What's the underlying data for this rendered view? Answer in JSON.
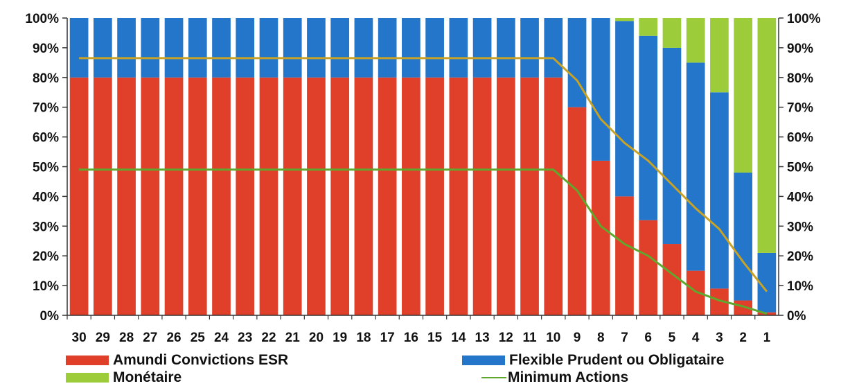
{
  "chart_data": {
    "type": "bar",
    "stacked": true,
    "categories": [
      "30",
      "29",
      "28",
      "27",
      "26",
      "25",
      "24",
      "23",
      "22",
      "21",
      "20",
      "19",
      "18",
      "17",
      "16",
      "15",
      "14",
      "13",
      "12",
      "11",
      "10",
      "9",
      "8",
      "7",
      "6",
      "5",
      "4",
      "3",
      "2",
      "1"
    ],
    "series": [
      {
        "name": "Amundi Convictions ESR",
        "color": "#e0402a",
        "values": [
          80,
          80,
          80,
          80,
          80,
          80,
          80,
          80,
          80,
          80,
          80,
          80,
          80,
          80,
          80,
          80,
          80,
          80,
          80,
          80,
          80,
          70,
          52,
          40,
          32,
          24,
          15,
          9,
          5,
          1
        ]
      },
      {
        "name": "Flexible Prudent ou Obligataire",
        "color": "#2376c9",
        "values": [
          20,
          20,
          20,
          20,
          20,
          20,
          20,
          20,
          20,
          20,
          20,
          20,
          20,
          20,
          20,
          20,
          20,
          20,
          20,
          20,
          20,
          30,
          48,
          59,
          62,
          66,
          70,
          66,
          43,
          20
        ]
      },
      {
        "name": "Monétaire",
        "color": "#9ccc3a",
        "values": [
          0,
          0,
          0,
          0,
          0,
          0,
          0,
          0,
          0,
          0,
          0,
          0,
          0,
          0,
          0,
          0,
          0,
          0,
          0,
          0,
          0,
          0,
          0,
          1,
          6,
          10,
          15,
          25,
          52,
          79
        ]
      }
    ],
    "lines": [
      {
        "name": "",
        "color": "#c8a227",
        "values": [
          86.5,
          86.5,
          86.5,
          86.5,
          86.5,
          86.5,
          86.5,
          86.5,
          86.5,
          86.5,
          86.5,
          86.5,
          86.5,
          86.5,
          86.5,
          86.5,
          86.5,
          86.5,
          86.5,
          86.5,
          86.5,
          79,
          66,
          58,
          52,
          44,
          36,
          29,
          18,
          8
        ]
      },
      {
        "name": "Minimum Actions",
        "color": "#5fa82d",
        "values": [
          49,
          49,
          49,
          49,
          49,
          49,
          49,
          49,
          49,
          49,
          49,
          49,
          49,
          49,
          49,
          49,
          49,
          49,
          49,
          49,
          49,
          42,
          30,
          24,
          20,
          14,
          8,
          5,
          3,
          0.5
        ]
      }
    ],
    "yticks": [
      "0%",
      "10%",
      "20%",
      "30%",
      "40%",
      "50%",
      "60%",
      "70%",
      "80%",
      "90%",
      "100%"
    ],
    "ylim": [
      0,
      100
    ],
    "right_axis": true,
    "legend_position": "bottom"
  },
  "legend": [
    {
      "label": "Amundi Convictions ESR",
      "kind": "swatch",
      "color": "#e0402a"
    },
    {
      "label": "Flexible Prudent ou Obligataire",
      "kind": "swatch",
      "color": "#2376c9"
    },
    {
      "label": "Monétaire",
      "kind": "swatch",
      "color": "#9ccc3a"
    },
    {
      "label": "Minimum Actions",
      "kind": "line",
      "color": "#5fa82d"
    }
  ]
}
